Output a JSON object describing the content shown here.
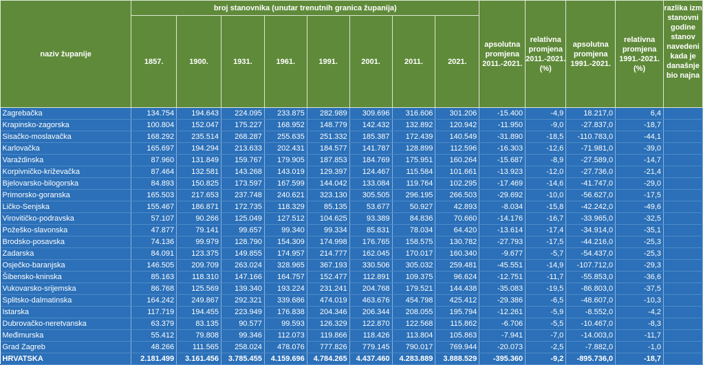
{
  "header": {
    "group_title": "broj stanovnika (unutar trenutnih granica županija)",
    "name_col": "naziv županije",
    "years": [
      "1857.",
      "1900.",
      "1931.",
      "1961.",
      "1991.",
      "2001.",
      "2011.",
      "2021."
    ],
    "abs_change_2011": "apsolutna promjena 2011.-2021.",
    "rel_change_2011": "relativna promjena 2011.-2021. (%)",
    "abs_change_1991": "apsolutna promjena 1991.-2021.",
    "rel_change_1991": "relativna promjena 1991.-2021. (%)",
    "diff_col": "razlika izm stanovni godine stanov navedeni kada je današnje bio najna"
  },
  "rows": [
    {
      "name": "Zagrebačka",
      "v": [
        "134.754",
        "194.643",
        "224.095",
        "233.875",
        "282.989",
        "309.696",
        "316.606",
        "301.206"
      ],
      "abs11": "-15.400",
      "rel11": "-4,9",
      "abs91": "18.217,0",
      "rel91": "6,4"
    },
    {
      "name": "Krapinsko-zagorska",
      "v": [
        "100.804",
        "152.047",
        "175.227",
        "168.952",
        "148.779",
        "142.432",
        "132.892",
        "120.942"
      ],
      "abs11": "-11.950",
      "rel11": "-9,0",
      "abs91": "-27.837,0",
      "rel91": "-18,7"
    },
    {
      "name": "Sisačko-moslavačka",
      "v": [
        "168.292",
        "235.514",
        "268.287",
        "255.635",
        "251.332",
        "185.387",
        "172.439",
        "140.549"
      ],
      "abs11": "-31.890",
      "rel11": "-18,5",
      "abs91": "-110.783,0",
      "rel91": "-44,1"
    },
    {
      "name": "Karlovačka",
      "v": [
        "165.697",
        "194.294",
        "213.633",
        "202.431",
        "184.577",
        "141.787",
        "128.899",
        "112.596"
      ],
      "abs11": "-16.303",
      "rel11": "-12,6",
      "abs91": "-71.981,0",
      "rel91": "-39,0"
    },
    {
      "name": "Varaždinska",
      "v": [
        "87.960",
        "131.849",
        "159.767",
        "179.905",
        "187.853",
        "184.769",
        "175.951",
        "160.264"
      ],
      "abs11": "-15.687",
      "rel11": "-8,9",
      "abs91": "-27.589,0",
      "rel91": "-14,7"
    },
    {
      "name": "Korpivničko-križevačka",
      "v": [
        "87.464",
        "132.581",
        "143.268",
        "143.019",
        "129.397",
        "124.467",
        "115.584",
        "101.661"
      ],
      "abs11": "-13.923",
      "rel11": "-12,0",
      "abs91": "-27.736,0",
      "rel91": "-21,4"
    },
    {
      "name": "Bjelovarsko-bilogorska",
      "v": [
        "84.893",
        "150.825",
        "173.597",
        "167.599",
        "144.042",
        "133.084",
        "119.764",
        "102.295"
      ],
      "abs11": "-17.469",
      "rel11": "-14,6",
      "abs91": "-41.747,0",
      "rel91": "-29,0"
    },
    {
      "name": "Primorsko-goranska",
      "v": [
        "165.503",
        "217.653",
        "237.748",
        "240.621",
        "323.130",
        "305.505",
        "296.195",
        "266.503"
      ],
      "abs11": "-29.692",
      "rel11": "-10,0",
      "abs91": "-56.627,0",
      "rel91": "-17,5"
    },
    {
      "name": "Ličko-Senjska",
      "v": [
        "155.467",
        "186.871",
        "172.735",
        "118.329",
        "85.135",
        "53.677",
        "50.927",
        "42.893"
      ],
      "abs11": "-8.034",
      "rel11": "-15,8",
      "abs91": "-42.242,0",
      "rel91": "-49,6"
    },
    {
      "name": "Virovitičko-podravska",
      "v": [
        "57.107",
        "90.266",
        "125.049",
        "127.512",
        "104.625",
        "93.389",
        "84.836",
        "70.660"
      ],
      "abs11": "-14.176",
      "rel11": "-16,7",
      "abs91": "-33.965,0",
      "rel91": "-32,5"
    },
    {
      "name": "Požeško-slavonska",
      "v": [
        "47.877",
        "79.141",
        "99.657",
        "99.340",
        "99.334",
        "85.831",
        "78.034",
        "64.420"
      ],
      "abs11": "-13.614",
      "rel11": "-17,4",
      "abs91": "-34.914,0",
      "rel91": "-35,1"
    },
    {
      "name": "Brodsko-posavska",
      "v": [
        "74.136",
        "99.979",
        "128.790",
        "154.309",
        "174.998",
        "176.765",
        "158.575",
        "130.782"
      ],
      "abs11": "-27.793",
      "rel11": "-17,5",
      "abs91": "-44.216,0",
      "rel91": "-25,3"
    },
    {
      "name": "Zadarska",
      "v": [
        "84.091",
        "123.375",
        "149.855",
        "174.957",
        "214.777",
        "162.045",
        "170.017",
        "160.340"
      ],
      "abs11": "-9.677",
      "rel11": "-5,7",
      "abs91": "-54.437,0",
      "rel91": "-25,3"
    },
    {
      "name": "Osječko-baranjska",
      "v": [
        "146.505",
        "209.709",
        "263.024",
        "328.965",
        "367.193",
        "330.506",
        "305.032",
        "259.481"
      ],
      "abs11": "-45.551",
      "rel11": "-14,9",
      "abs91": "-107.712,0",
      "rel91": "-29,3"
    },
    {
      "name": "Šibensko-kninska",
      "v": [
        "85.163",
        "118.310",
        "147.166",
        "164.757",
        "152.477",
        "112.891",
        "109.375",
        "96.624"
      ],
      "abs11": "-12.751",
      "rel11": "-11,7",
      "abs91": "-55.853,0",
      "rel91": "-36,6"
    },
    {
      "name": "Vukovarsko-srijemska",
      "v": [
        "86.768",
        "125.569",
        "139.340",
        "193.224",
        "231.241",
        "204.768",
        "179.521",
        "144.438"
      ],
      "abs11": "-35.083",
      "rel11": "-19,5",
      "abs91": "-86.803,0",
      "rel91": "-37,5"
    },
    {
      "name": "Splitsko-dalmatinska",
      "v": [
        "164.242",
        "249.867",
        "292.321",
        "339.686",
        "474.019",
        "463.676",
        "454.798",
        "425.412"
      ],
      "abs11": "-29.386",
      "rel11": "-6,5",
      "abs91": "-48.607,0",
      "rel91": "-10,3"
    },
    {
      "name": "Istarska",
      "v": [
        "117.719",
        "194.455",
        "223.949",
        "176.838",
        "204.346",
        "206.344",
        "208.055",
        "195.794"
      ],
      "abs11": "-12.261",
      "rel11": "-5,9",
      "abs91": "-8.552,0",
      "rel91": "-4,2"
    },
    {
      "name": "Dubrovačko-neretvanska",
      "v": [
        "63.379",
        "83.135",
        "90.577",
        "99.593",
        "126.329",
        "122.870",
        "122.568",
        "115.862"
      ],
      "abs11": "-6.706",
      "rel11": "-5,5",
      "abs91": "-10.467,0",
      "rel91": "-8,3"
    },
    {
      "name": "Međimurska",
      "v": [
        "55.412",
        "79.808",
        "99.346",
        "112.073",
        "119.866",
        "118.426",
        "113.804",
        "105.863"
      ],
      "abs11": "-7.941",
      "rel11": "-7,0",
      "abs91": "-14.003,0",
      "rel91": "-11,7"
    },
    {
      "name": "Grad Zagreb",
      "v": [
        "48.266",
        "111.565",
        "258.024",
        "478.076",
        "777.826",
        "779.145",
        "790.017",
        "769.944"
      ],
      "abs11": "-20.073",
      "rel11": "-2,5",
      "abs91": "-7.882,0",
      "rel91": "-1,0"
    },
    {
      "name": "HRVATSKA",
      "v": [
        "2.181.499",
        "3.161.456",
        "3.785.455",
        "4.159.696",
        "4.784.265",
        "4.437.460",
        "4.283.889",
        "3.888.529"
      ],
      "abs11": "-395.360",
      "rel11": "-9,2",
      "abs91": "-895.736,0",
      "rel91": "-18,7",
      "total": true
    }
  ]
}
